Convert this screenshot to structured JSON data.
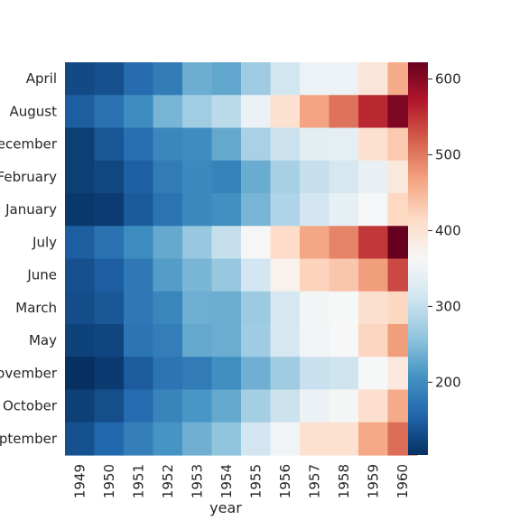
{
  "chart_data": {
    "type": "heatmap",
    "xlabel": "year",
    "ylabel": "",
    "title": "",
    "x_categories": [
      "1949",
      "1950",
      "1951",
      "1952",
      "1953",
      "1954",
      "1955",
      "1956",
      "1957",
      "1958",
      "1959",
      "1960"
    ],
    "y_categories": [
      "April",
      "August",
      "December",
      "February",
      "January",
      "July",
      "June",
      "March",
      "May",
      "November",
      "October",
      "September"
    ],
    "values": [
      [
        129,
        135,
        163,
        181,
        235,
        227,
        269,
        313,
        348,
        348,
        396,
        461
      ],
      [
        148,
        170,
        199,
        242,
        272,
        293,
        347,
        405,
        467,
        505,
        559,
        606
      ],
      [
        118,
        140,
        166,
        194,
        201,
        229,
        278,
        306,
        336,
        337,
        405,
        432
      ],
      [
        118,
        126,
        150,
        180,
        196,
        188,
        233,
        277,
        301,
        318,
        342,
        391
      ],
      [
        112,
        115,
        145,
        171,
        196,
        204,
        242,
        284,
        315,
        340,
        360,
        417
      ],
      [
        148,
        170,
        199,
        230,
        264,
        302,
        364,
        413,
        465,
        491,
        548,
        622
      ],
      [
        135,
        149,
        178,
        218,
        243,
        264,
        315,
        374,
        422,
        435,
        472,
        535
      ],
      [
        132,
        141,
        178,
        193,
        236,
        235,
        267,
        317,
        356,
        362,
        406,
        419
      ],
      [
        121,
        125,
        172,
        183,
        229,
        234,
        270,
        318,
        355,
        363,
        420,
        472
      ],
      [
        104,
        114,
        146,
        172,
        180,
        203,
        237,
        271,
        305,
        310,
        362,
        390
      ],
      [
        119,
        133,
        162,
        191,
        211,
        229,
        274,
        306,
        347,
        359,
        407,
        461
      ],
      [
        136,
        158,
        184,
        209,
        237,
        259,
        312,
        355,
        404,
        404,
        463,
        508
      ]
    ],
    "colorbar": {
      "ticks": [
        200,
        300,
        400,
        500,
        600
      ],
      "vmin": 104,
      "vmax": 622,
      "colormap": "RdBu_r"
    }
  }
}
